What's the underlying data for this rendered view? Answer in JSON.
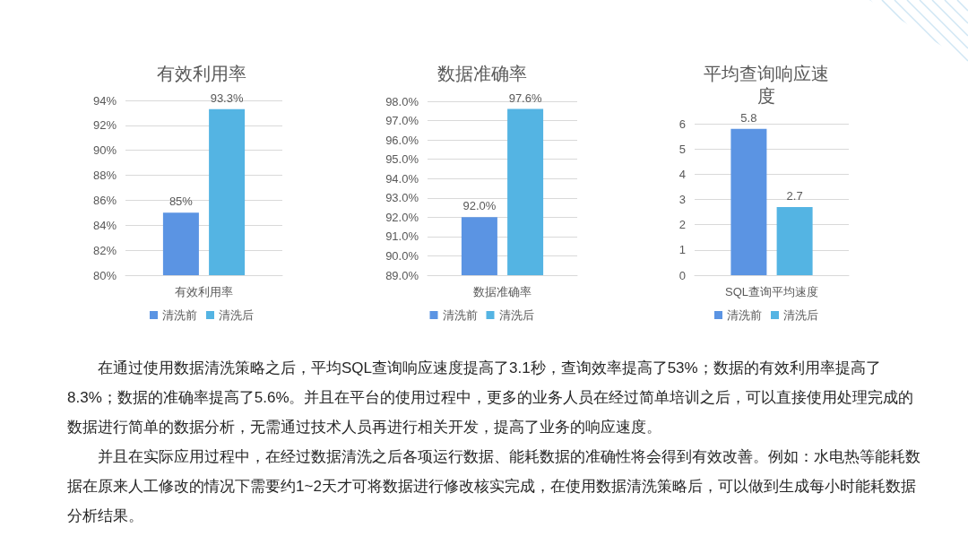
{
  "chart_data": [
    {
      "type": "bar",
      "title": "有效利用率",
      "categories": [
        "有效利用率"
      ],
      "series": [
        {
          "name": "清洗前",
          "color": "#5b94e3",
          "values": [
            85
          ],
          "value_labels": [
            "85%"
          ]
        },
        {
          "name": "清洗后",
          "color": "#54b4e3",
          "values": [
            93.3
          ],
          "value_labels": [
            "93.3%"
          ]
        }
      ],
      "ylim": [
        80,
        94
      ],
      "yticks": [
        {
          "value": 80,
          "label": "80%"
        },
        {
          "value": 82,
          "label": "82%"
        },
        {
          "value": 84,
          "label": "84%"
        },
        {
          "value": 86,
          "label": "86%"
        },
        {
          "value": 88,
          "label": "88%"
        },
        {
          "value": 90,
          "label": "90%"
        },
        {
          "value": 92,
          "label": "92%"
        },
        {
          "value": 94,
          "label": "94%"
        }
      ],
      "grid": "y",
      "legend": "bottom"
    },
    {
      "type": "bar",
      "title": "数据准确率",
      "categories": [
        "数据准确率"
      ],
      "series": [
        {
          "name": "清洗前",
          "color": "#5b94e3",
          "values": [
            92.0
          ],
          "value_labels": [
            "92.0%"
          ]
        },
        {
          "name": "清洗后",
          "color": "#54b4e3",
          "values": [
            97.6
          ],
          "value_labels": [
            "97.6%"
          ]
        }
      ],
      "ylim": [
        89,
        98
      ],
      "yticks": [
        {
          "value": 89,
          "label": "89.0%"
        },
        {
          "value": 90,
          "label": "90.0%"
        },
        {
          "value": 91,
          "label": "91.0%"
        },
        {
          "value": 92,
          "label": "92.0%"
        },
        {
          "value": 93,
          "label": "93.0%"
        },
        {
          "value": 94,
          "label": "94.0%"
        },
        {
          "value": 95,
          "label": "95.0%"
        },
        {
          "value": 96,
          "label": "96.0%"
        },
        {
          "value": 97,
          "label": "97.0%"
        },
        {
          "value": 98,
          "label": "98.0%"
        }
      ],
      "grid": "y",
      "legend": "bottom"
    },
    {
      "type": "bar",
      "title": "平均查询响应速度",
      "categories": [
        "SQL查询平均速度"
      ],
      "series": [
        {
          "name": "清洗前",
          "color": "#5b94e3",
          "values": [
            5.8
          ]
        },
        {
          "name": "清洗后",
          "color": "#54b4e3",
          "values": [
            2.7
          ]
        }
      ],
      "ylim": [
        0,
        6
      ],
      "yticks": [
        0,
        1,
        2,
        3,
        4,
        5,
        6
      ],
      "grid": "y",
      "legend": "bottom",
      "data_labels": true
    },
    {
      "type": "other",
      "annotations": [
        "在通过使用数据清洗策略之后，平均SQL查询响应速度提高了3.1秒，查询效率提高了53%；数据的有效利用率提高了8.3%；数据的准确率提高了5.6%。并且在平台的使用过程中，更多的业务人员在经过简单培训之后，可以直接使用处理完成的数据进行简单的数据分析，无需通过技术人员再进行相关开发，提高了业务的响应速度。",
        "并且在实际应用过程中，在经过数据清洗之后各项运行数据、能耗数据的准确性将会得到有效改善。例如：水电热等能耗数据在原来人工修改的情况下需要约1~2天才可将数据进行修改核实完成，在使用数据清洗策略后，可以做到生成每小时能耗数据分析结果。"
      ]
    }
  ]
}
